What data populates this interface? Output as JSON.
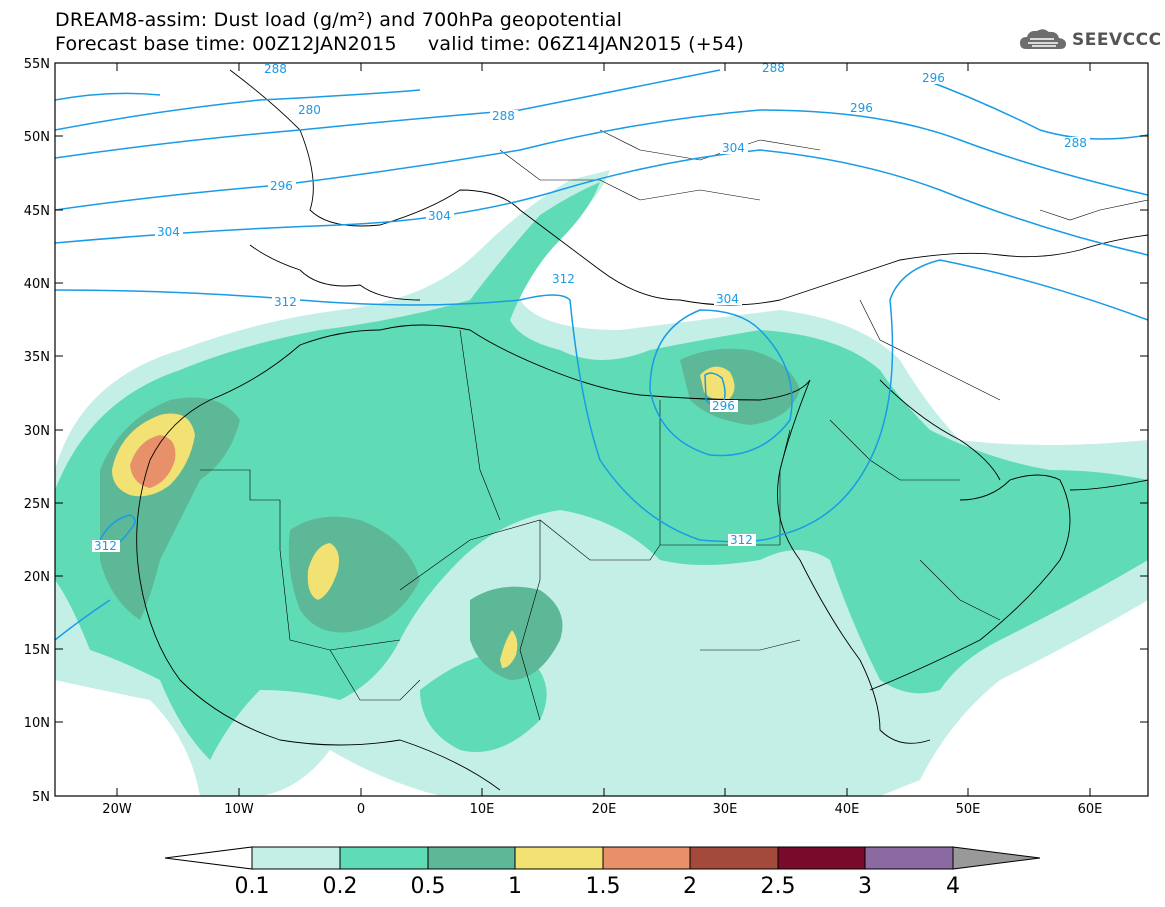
{
  "header": {
    "title_line1": "DREAM8-assim: Dust load (g/m²) and 700hPa geopotential",
    "title_line2": "Forecast base time: 00Z12JAN2015     valid time: 06Z14JAN2015 (+54)",
    "logo_text": "SEEVCCC"
  },
  "axes": {
    "lat_labels": [
      "55N",
      "50N",
      "45N",
      "40N",
      "35N",
      "30N",
      "25N",
      "20N",
      "15N",
      "10N",
      "5N"
    ],
    "lon_labels": [
      "20W",
      "10W",
      "0",
      "10E",
      "20E",
      "30E",
      "40E",
      "50E",
      "60E"
    ]
  },
  "geopotential_labels": [
    "288",
    "280",
    "288",
    "296",
    "288",
    "304",
    "296",
    "288",
    "304",
    "296",
    "304",
    "312",
    "312",
    "304",
    "296",
    "312",
    "312"
  ],
  "colorbar": {
    "labels": [
      "0.1",
      "0.2",
      "0.5",
      "1",
      "1.5",
      "2",
      "2.5",
      "3",
      "4"
    ],
    "colors": [
      "#c4efe6",
      "#5fdcb6",
      "#5db898",
      "#f2e273",
      "#e8906a",
      "#a44a3d",
      "#7a0a2a",
      "#8a6aa0",
      "#999999"
    ]
  },
  "colors": {
    "contour": "#1a9be6",
    "level_0_1": "#c4efe6",
    "level_0_2": "#5fdcb6",
    "level_0_5": "#5db898",
    "level_1": "#f2e273",
    "level_1_5": "#e8906a",
    "level_2": "#a44a3d"
  }
}
